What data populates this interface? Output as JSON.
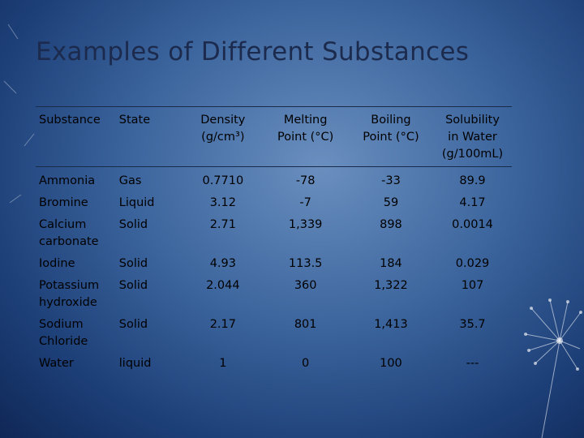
{
  "slide": {
    "title": "Examples of Different Substances"
  },
  "table": {
    "headers": [
      {
        "line1": "Substance",
        "line2": "",
        "line3": ""
      },
      {
        "line1": "State",
        "line2": "",
        "line3": ""
      },
      {
        "line1": "Density",
        "line2": "(g/cm³)",
        "line3": ""
      },
      {
        "line1": "Melting",
        "line2": "Point (°C)",
        "line3": ""
      },
      {
        "line1": "Boiling",
        "line2": "Point (°C)",
        "line3": ""
      },
      {
        "line1": "Solubility",
        "line2": "in Water",
        "line3": "(g/100mL)"
      }
    ],
    "rows": [
      {
        "substance": "Ammonia",
        "state": "Gas",
        "density": "0.7710",
        "melting": "-78",
        "boiling": "-33",
        "solubility": "89.9"
      },
      {
        "substance": "Bromine",
        "state": "Liquid",
        "density": "3.12",
        "melting": "-7",
        "boiling": "59",
        "solubility": "4.17"
      },
      {
        "substance": "Calcium carbonate",
        "state": "Solid",
        "density": "2.71",
        "melting": "1,339",
        "boiling": "898",
        "solubility": "0.0014"
      },
      {
        "substance": "Iodine",
        "state": "Solid",
        "density": "4.93",
        "melting": "113.5",
        "boiling": "184",
        "solubility": "0.029"
      },
      {
        "substance": "Potassium hydroxide",
        "state": "Solid",
        "density": "2.044",
        "melting": "360",
        "boiling": "1,322",
        "solubility": "107"
      },
      {
        "substance": "Sodium Chloride",
        "state": "Solid",
        "density": "2.17",
        "melting": "801",
        "boiling": "1,413",
        "solubility": "35.7"
      },
      {
        "substance": "Water",
        "state": "liquid",
        "density": "1",
        "melting": "0",
        "boiling": "100",
        "solubility": "---"
      }
    ]
  }
}
